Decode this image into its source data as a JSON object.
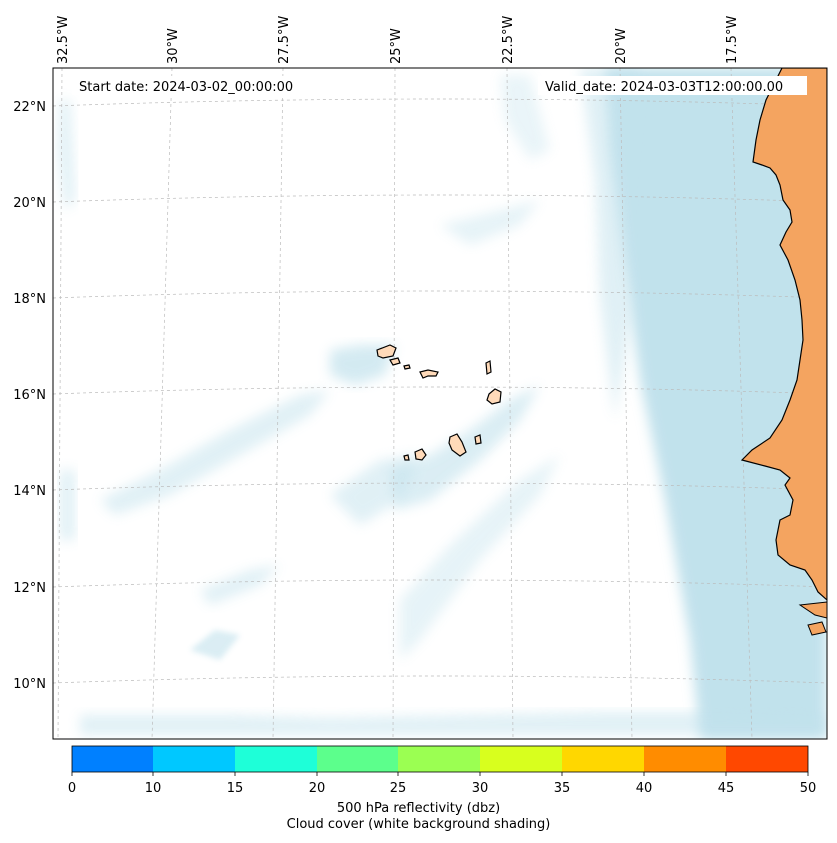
{
  "map": {
    "start_date": "Start date: 2024-03-02_00:00:00",
    "valid_date": "Valid_date: 2024-03-03T12:00:00.00",
    "lon_labels": [
      "32.5°W",
      "30°W",
      "27.5°W",
      "25°W",
      "22.5°W",
      "20°W",
      "17.5°W"
    ],
    "lat_labels": [
      "22°N",
      "20°N",
      "18°N",
      "16°N",
      "14°N",
      "12°N",
      "10°N"
    ],
    "colors": {
      "ocean": "#ffffff",
      "land": "#f4a460",
      "islands": "#ffdab9",
      "cloud": "#add8e6",
      "gridline": "#bbbbbb"
    }
  },
  "colorbar": {
    "ticks": [
      "0",
      "10",
      "15",
      "20",
      "25",
      "30",
      "35",
      "40",
      "45",
      "50"
    ],
    "colors": [
      "#0080ff",
      "#00c8ff",
      "#1effd8",
      "#5cff8c",
      "#9bff52",
      "#d8ff1e",
      "#ffd700",
      "#ff8c00",
      "#ff4800"
    ],
    "label_line1": "500 hPa reflectivity (dbz)",
    "label_line2": "Cloud cover (white background shading)"
  }
}
